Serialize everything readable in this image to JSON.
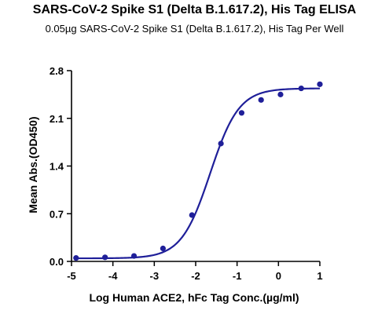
{
  "chart_data": {
    "type": "scatter",
    "title": "SARS-CoV-2 Spike S1 (Delta B.1.617.2), His Tag ELISA",
    "subtitle": "0.05µg SARS-CoV-2 Spike S1 (Delta B.1.617.2), His Tag Per Well",
    "xlabel": "Log Human ACE2, hFc Tag Conc.(µg/ml)",
    "ylabel": "Mean Abs.(OD450)",
    "xlim": [
      -5,
      1
    ],
    "ylim": [
      0,
      2.8
    ],
    "xticks": [
      "-5",
      "-4",
      "-3",
      "-2",
      "-1",
      "0",
      "1"
    ],
    "yticks": [
      "0.0",
      "0.7",
      "1.4",
      "2.1",
      "2.8"
    ],
    "series": [
      {
        "points": [
          {
            "x": -4.89,
            "y": 0.05
          },
          {
            "x": -4.19,
            "y": 0.06
          },
          {
            "x": -3.49,
            "y": 0.08
          },
          {
            "x": -2.79,
            "y": 0.19
          },
          {
            "x": -2.09,
            "y": 0.68
          },
          {
            "x": -1.39,
            "y": 1.73
          },
          {
            "x": -0.89,
            "y": 2.18
          },
          {
            "x": -0.42,
            "y": 2.37
          },
          {
            "x": 0.05,
            "y": 2.45
          },
          {
            "x": 0.55,
            "y": 2.54
          },
          {
            "x": 1.0,
            "y": 2.6
          }
        ],
        "fit": {
          "bottom": 0.045,
          "top": 2.54,
          "log_ec50": -1.65,
          "hill_slope": 1.25
        },
        "color": "#1f1f99"
      }
    ],
    "grid": false,
    "legend": "none"
  }
}
